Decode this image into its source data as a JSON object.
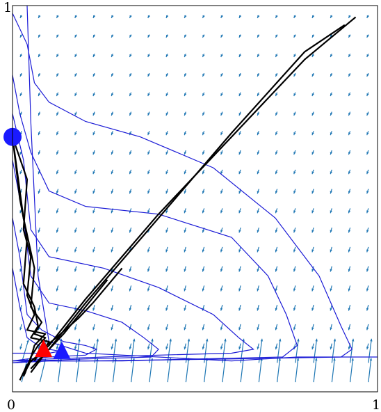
{
  "chart_data": {
    "type": "vector-field-with-trajectories",
    "title": "",
    "xlabel": "",
    "ylabel": "",
    "xlim": [
      0,
      1
    ],
    "ylim": [
      0,
      1
    ],
    "x_ticks": [
      "0",
      "1"
    ],
    "y_ticks": [
      "1"
    ],
    "grid": false,
    "legend": "none",
    "colors": {
      "field_arrows": "#1f77b4",
      "contours": "#1a1ad6",
      "trajectories": "#000000",
      "start_marker": "#1a1aff",
      "end_marker_a": "#ff0000",
      "end_marker_b": "#1a1aff"
    },
    "markers": [
      {
        "name": "start",
        "shape": "circle",
        "x": 0.0,
        "y": 0.66
      },
      {
        "name": "end-red",
        "shape": "triangle",
        "x": 0.085,
        "y": 0.11
      },
      {
        "name": "end-blue",
        "shape": "triangle",
        "x": 0.135,
        "y": 0.105
      }
    ],
    "contours": [
      [
        [
          0.04,
          1.0
        ],
        [
          0.05,
          0.7
        ],
        [
          0.07,
          0.3
        ],
        [
          0.1,
          0.13
        ],
        [
          0.2,
          0.1
        ],
        [
          0.4,
          0.09
        ],
        [
          0.6,
          0.08
        ],
        [
          0.78,
          0.09
        ],
        [
          0.94,
          0.09
        ],
        [
          1.0,
          0.09
        ]
      ],
      [
        [
          0.0,
          0.98
        ],
        [
          0.04,
          0.9
        ],
        [
          0.06,
          0.8
        ],
        [
          0.1,
          0.75
        ],
        [
          0.2,
          0.7
        ],
        [
          0.35,
          0.66
        ],
        [
          0.55,
          0.58
        ],
        [
          0.72,
          0.45
        ],
        [
          0.84,
          0.3
        ],
        [
          0.9,
          0.17
        ],
        [
          0.93,
          0.11
        ],
        [
          0.9,
          0.09
        ],
        [
          0.6,
          0.085
        ],
        [
          0.2,
          0.08
        ],
        [
          0.1,
          0.08
        ],
        [
          0.0,
          0.08
        ]
      ],
      [
        [
          0.0,
          0.82
        ],
        [
          0.02,
          0.72
        ],
        [
          0.05,
          0.62
        ],
        [
          0.1,
          0.52
        ],
        [
          0.2,
          0.48
        ],
        [
          0.4,
          0.46
        ],
        [
          0.6,
          0.4
        ],
        [
          0.7,
          0.3
        ],
        [
          0.75,
          0.2
        ],
        [
          0.78,
          0.12
        ],
        [
          0.74,
          0.09
        ],
        [
          0.5,
          0.085
        ],
        [
          0.3,
          0.08
        ],
        [
          0.1,
          0.08
        ],
        [
          0.0,
          0.075
        ]
      ],
      [
        [
          0.0,
          0.72
        ],
        [
          0.03,
          0.6
        ],
        [
          0.05,
          0.42
        ],
        [
          0.1,
          0.35
        ],
        [
          0.25,
          0.32
        ],
        [
          0.4,
          0.27
        ],
        [
          0.55,
          0.2
        ],
        [
          0.62,
          0.14
        ],
        [
          0.66,
          0.11
        ],
        [
          0.6,
          0.1
        ],
        [
          0.4,
          0.095
        ],
        [
          0.25,
          0.09
        ],
        [
          0.1,
          0.085
        ],
        [
          0.0,
          0.08
        ]
      ],
      [
        [
          0.0,
          0.6
        ],
        [
          0.03,
          0.45
        ],
        [
          0.05,
          0.3
        ],
        [
          0.1,
          0.23
        ],
        [
          0.2,
          0.21
        ],
        [
          0.3,
          0.18
        ],
        [
          0.36,
          0.14
        ],
        [
          0.4,
          0.11
        ],
        [
          0.38,
          0.09
        ],
        [
          0.2,
          0.085
        ],
        [
          0.05,
          0.08
        ],
        [
          0.0,
          0.075
        ]
      ],
      [
        [
          0.0,
          0.45
        ],
        [
          0.02,
          0.35
        ],
        [
          0.04,
          0.2
        ],
        [
          0.08,
          0.16
        ],
        [
          0.14,
          0.13
        ],
        [
          0.2,
          0.12
        ],
        [
          0.23,
          0.11
        ],
        [
          0.2,
          0.095
        ],
        [
          0.1,
          0.09
        ],
        [
          0.04,
          0.085
        ],
        [
          0.0,
          0.08
        ]
      ],
      [
        [
          0.0,
          0.32
        ],
        [
          0.02,
          0.22
        ],
        [
          0.04,
          0.14
        ],
        [
          0.07,
          0.12
        ],
        [
          0.1,
          0.11
        ],
        [
          0.13,
          0.105
        ],
        [
          0.1,
          0.1
        ],
        [
          0.06,
          0.1
        ],
        [
          0.0,
          0.1
        ]
      ]
    ],
    "trajectories": [
      [
        [
          0.0,
          0.66
        ],
        [
          0.03,
          0.45
        ],
        [
          0.06,
          0.32
        ],
        [
          0.05,
          0.22
        ],
        [
          0.08,
          0.18
        ],
        [
          0.06,
          0.15
        ],
        [
          0.09,
          0.14
        ],
        [
          0.07,
          0.12
        ],
        [
          0.05,
          0.09
        ],
        [
          0.035,
          0.05
        ],
        [
          0.03,
          0.04
        ]
      ],
      [
        [
          0.0,
          0.66
        ],
        [
          0.02,
          0.5
        ],
        [
          0.04,
          0.4
        ],
        [
          0.03,
          0.28
        ],
        [
          0.06,
          0.22
        ],
        [
          0.07,
          0.17
        ],
        [
          0.05,
          0.14
        ],
        [
          0.1,
          0.13
        ],
        [
          0.08,
          0.1
        ],
        [
          0.05,
          0.08
        ],
        [
          0.035,
          0.06
        ]
      ],
      [
        [
          0.0,
          0.66
        ],
        [
          0.04,
          0.55
        ],
        [
          0.03,
          0.42
        ],
        [
          0.05,
          0.35
        ],
        [
          0.04,
          0.25
        ],
        [
          0.06,
          0.2
        ],
        [
          0.04,
          0.16
        ],
        [
          0.09,
          0.15
        ],
        [
          0.06,
          0.12
        ],
        [
          0.045,
          0.07
        ],
        [
          0.03,
          0.045
        ]
      ],
      [
        [
          0.02,
          0.03
        ],
        [
          0.04,
          0.07
        ],
        [
          0.1,
          0.12
        ],
        [
          0.2,
          0.24
        ],
        [
          0.4,
          0.46
        ],
        [
          0.6,
          0.66
        ],
        [
          0.8,
          0.86
        ],
        [
          0.94,
          0.97
        ]
      ],
      [
        [
          0.05,
          0.06
        ],
        [
          0.1,
          0.11
        ],
        [
          0.2,
          0.23
        ],
        [
          0.4,
          0.45
        ],
        [
          0.6,
          0.67
        ],
        [
          0.8,
          0.88
        ],
        [
          0.91,
          0.95
        ]
      ],
      [
        [
          0.06,
          0.08
        ],
        [
          0.08,
          0.11
        ],
        [
          0.12,
          0.14
        ],
        [
          0.18,
          0.19
        ],
        [
          0.22,
          0.23
        ],
        [
          0.3,
          0.32
        ]
      ],
      [
        [
          0.05,
          0.05
        ],
        [
          0.09,
          0.1
        ],
        [
          0.14,
          0.15
        ],
        [
          0.2,
          0.22
        ],
        [
          0.26,
          0.29
        ]
      ]
    ]
  }
}
